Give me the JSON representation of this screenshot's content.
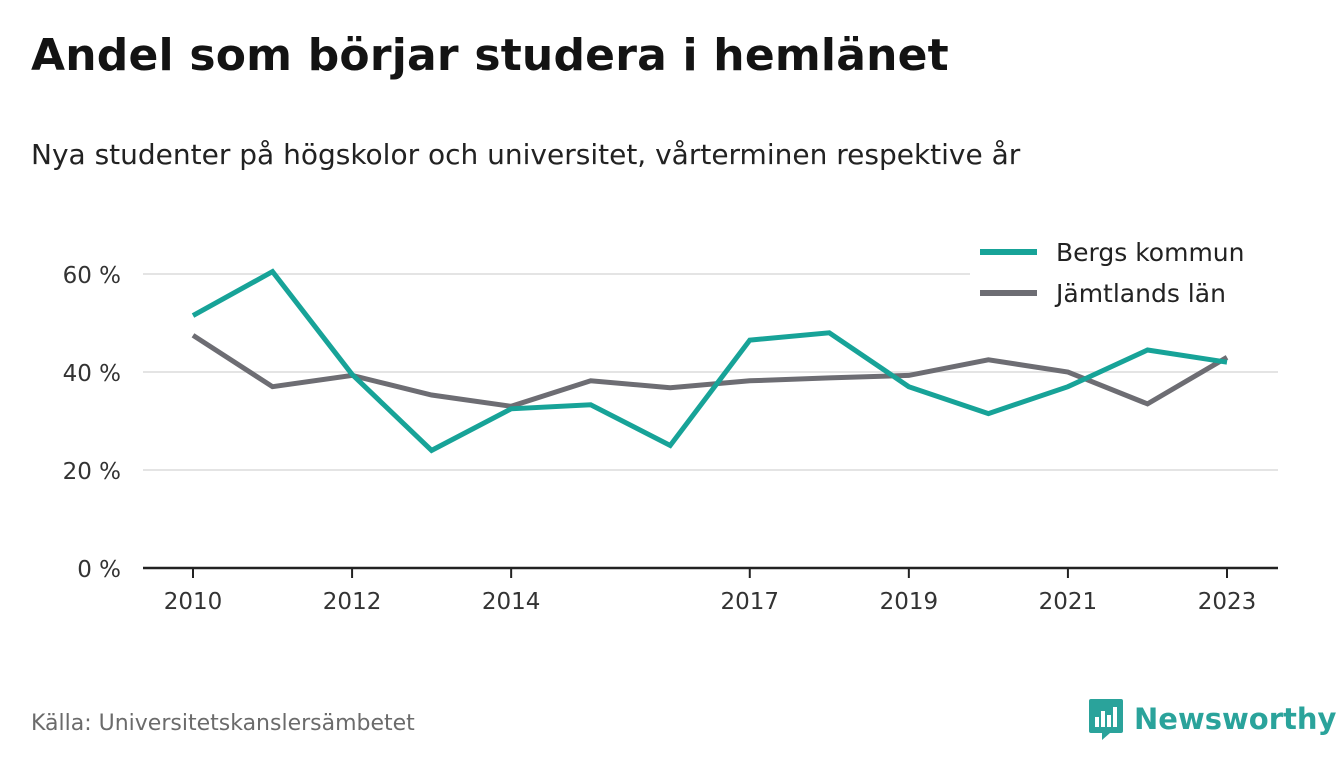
{
  "title": "Andel som börjar studera i hemlänet",
  "subtitle": "Nya studenter på högskolor och universitet, vårterminen respektive år",
  "source": "Källa: Universitetskanslersämbetet",
  "brand": "Newsworthy",
  "colors": {
    "bergs": "#17a398",
    "jamtland": "#6d6d73",
    "brand": "#2aa39b"
  },
  "chart_data": {
    "type": "line",
    "x": [
      2010,
      2011,
      2012,
      2013,
      2014,
      2015,
      2016,
      2017,
      2018,
      2019,
      2020,
      2021,
      2022,
      2023
    ],
    "x_tick_values": [
      2010,
      2012,
      2014,
      2017,
      2019,
      2021,
      2023
    ],
    "x_tick_labels": [
      "2010",
      "2012",
      "2014",
      "2017",
      "2019",
      "2021",
      "2023"
    ],
    "y_tick_values": [
      0,
      20,
      40,
      60
    ],
    "y_tick_labels": [
      "0 %",
      "20 %",
      "40 %",
      "60 %"
    ],
    "ylim": [
      0,
      70
    ],
    "grid": true,
    "legend_position": "top-right",
    "series": [
      {
        "name": "Bergs kommun",
        "color": "#17a398",
        "values": [
          51.5,
          60.5,
          39.5,
          24,
          32.5,
          33.3,
          25,
          46.5,
          48,
          37,
          31.5,
          37,
          44.5,
          42
        ]
      },
      {
        "name": "Jämtlands län",
        "color": "#6d6d73",
        "values": [
          47.5,
          37,
          39.3,
          35.3,
          33,
          38.2,
          36.8,
          38.2,
          38.8,
          39.3,
          42.5,
          40,
          33.5,
          43
        ]
      }
    ]
  }
}
